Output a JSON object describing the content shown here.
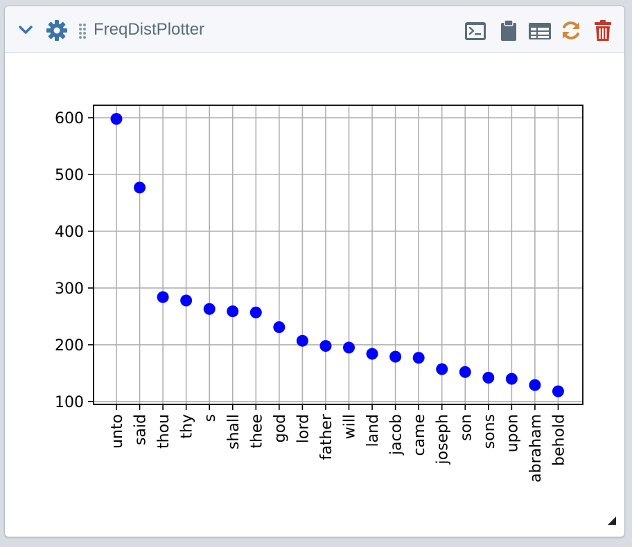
{
  "widget": {
    "title": "FreqDistPlotter"
  },
  "header_icons": {
    "collapse": "chevron-down-icon",
    "settings": "gear-icon",
    "drag": "drag-handle-icon",
    "terminal": "terminal-icon",
    "clipboard": "clipboard-icon",
    "table": "table-icon",
    "refresh": "refresh-icon",
    "delete": "trash-icon"
  },
  "colors": {
    "accent": "#3b74a8",
    "refresh": "#d08a3c",
    "delete": "#c0392b",
    "icon_gray": "#5c6b79",
    "marker": "#0000ff"
  },
  "chart_data": {
    "type": "scatter",
    "categories": [
      "unto",
      "said",
      "thou",
      "thy",
      "s",
      "shall",
      "thee",
      "god",
      "lord",
      "father",
      "will",
      "land",
      "jacob",
      "came",
      "joseph",
      "son",
      "sons",
      "upon",
      "abraham",
      "behold"
    ],
    "values": [
      598,
      477,
      284,
      278,
      263,
      259,
      257,
      231,
      207,
      198,
      195,
      184,
      179,
      177,
      157,
      152,
      142,
      140,
      129,
      118
    ],
    "yticks": [
      100,
      200,
      300,
      400,
      500,
      600
    ],
    "ylim": [
      95,
      622
    ],
    "grid": true,
    "title": "",
    "xlabel": "",
    "ylabel": ""
  }
}
